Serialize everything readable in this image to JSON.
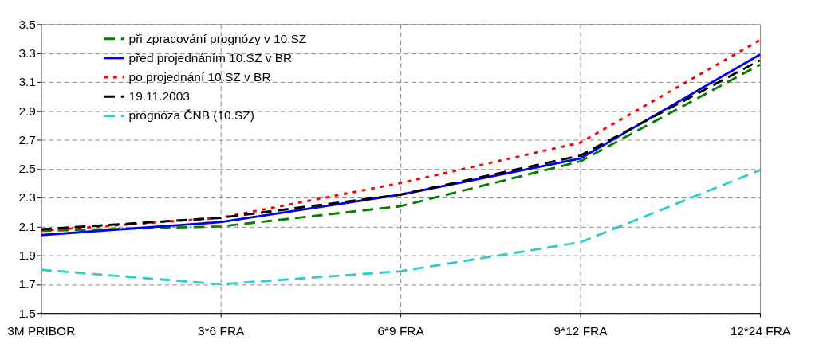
{
  "chart_data": {
    "type": "line",
    "categories": [
      "3M PRIBOR",
      "3*6 FRA",
      "6*9 FRA",
      "9*12 FRA",
      "12*24 FRA"
    ],
    "series": [
      {
        "name": "při zpracování prognózy v 10.SZ",
        "color": "#008000",
        "line_style": "dashed",
        "values": [
          2.07,
          2.1,
          2.24,
          2.55,
          3.22
        ]
      },
      {
        "name": "před projednáním 10.SZ v BR",
        "color": "#0000ff",
        "line_style": "solid",
        "values": [
          2.04,
          2.13,
          2.32,
          2.57,
          3.29
        ]
      },
      {
        "name": "po projednání 10.SZ v BR",
        "color": "#ff0000",
        "line_style": "dotted",
        "values": [
          2.07,
          2.16,
          2.4,
          2.68,
          3.39
        ]
      },
      {
        "name": "19.11.2003",
        "color": "#000000",
        "line_style": "dashed",
        "values": [
          2.08,
          2.16,
          2.32,
          2.59,
          3.25
        ]
      },
      {
        "name": "prognóza ČNB (10.SZ)",
        "color": "#33cccc",
        "line_style": "dashed",
        "values": [
          1.8,
          1.7,
          1.79,
          1.99,
          2.49
        ]
      }
    ],
    "ylim": [
      1.5,
      3.5
    ],
    "yticks": [
      1.5,
      1.7,
      1.9,
      2.1,
      2.3,
      2.5,
      2.7,
      2.9,
      3.1,
      3.3,
      3.5
    ],
    "grid": true,
    "legend": "top left",
    "marker": "none"
  }
}
